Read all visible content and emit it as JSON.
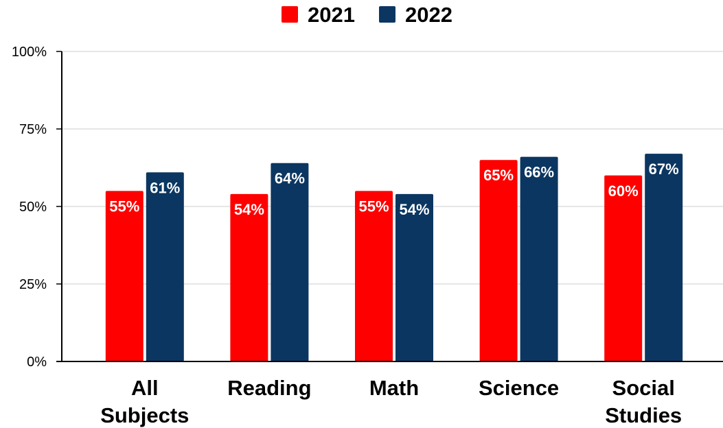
{
  "chart_data": {
    "type": "bar",
    "title": "",
    "xlabel": "",
    "ylabel": "",
    "categories": [
      [
        "All",
        "Subjects"
      ],
      [
        "Reading"
      ],
      [
        "Math"
      ],
      [
        "Science"
      ],
      [
        "Social",
        "Studies"
      ]
    ],
    "series": [
      {
        "name": "2021",
        "color": "#ff0000",
        "values": [
          55,
          54,
          55,
          65,
          60
        ],
        "labels": [
          "55%",
          "54%",
          "55%",
          "65%",
          "60%"
        ]
      },
      {
        "name": "2022",
        "color": "#0b3661",
        "values": [
          61,
          64,
          54,
          66,
          67
        ],
        "labels": [
          "61%",
          "64%",
          "54%",
          "66%",
          "67%"
        ]
      }
    ],
    "ylim": [
      0,
      100
    ],
    "yticks": [
      0,
      25,
      50,
      75,
      100
    ],
    "ytick_labels": [
      "0%",
      "25%",
      "50%",
      "75%",
      "100%"
    ],
    "grid": true,
    "gridline_color": "#cccccc",
    "legend_position": "top-center"
  }
}
